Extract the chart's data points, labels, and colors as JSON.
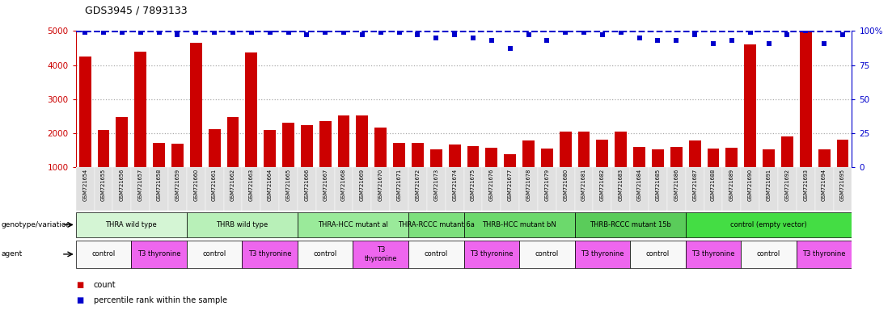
{
  "title": "GDS3945 / 7893133",
  "samples": [
    "GSM721654",
    "GSM721655",
    "GSM721656",
    "GSM721657",
    "GSM721658",
    "GSM721659",
    "GSM721660",
    "GSM721661",
    "GSM721662",
    "GSM721663",
    "GSM721664",
    "GSM721665",
    "GSM721666",
    "GSM721667",
    "GSM721668",
    "GSM721669",
    "GSM721670",
    "GSM721671",
    "GSM721672",
    "GSM721673",
    "GSM721674",
    "GSM721675",
    "GSM721676",
    "GSM721677",
    "GSM721678",
    "GSM721679",
    "GSM721680",
    "GSM721681",
    "GSM721682",
    "GSM721683",
    "GSM721684",
    "GSM721685",
    "GSM721686",
    "GSM721687",
    "GSM721688",
    "GSM721689",
    "GSM721690",
    "GSM721691",
    "GSM721692",
    "GSM721693",
    "GSM721694",
    "GSM721695"
  ],
  "bar_values": [
    4250,
    2100,
    2480,
    4400,
    1720,
    1700,
    4650,
    2120,
    2480,
    4380,
    2090,
    2320,
    2240,
    2350,
    2520,
    2530,
    2170,
    1720,
    1720,
    1520,
    1680,
    1620,
    1580,
    1380,
    1800,
    1560,
    2050,
    2060,
    1820,
    2060,
    1600,
    1520,
    1600,
    1780,
    1550,
    1580,
    4600,
    1520,
    1900,
    5000,
    1540,
    1820
  ],
  "percentile_values": [
    99,
    99,
    99,
    99,
    99,
    97,
    99,
    99,
    99,
    99,
    99,
    99,
    97,
    99,
    99,
    97,
    99,
    99,
    97,
    95,
    97,
    95,
    93,
    87,
    97,
    93,
    99,
    99,
    97,
    99,
    95,
    93,
    93,
    97,
    91,
    93,
    99,
    91,
    97,
    100,
    91,
    97
  ],
  "genotype_groups": [
    {
      "label": "THRA wild type",
      "start": 0,
      "end": 6,
      "color": "#d4f5d4"
    },
    {
      "label": "THRB wild type",
      "start": 6,
      "end": 12,
      "color": "#b8f0b8"
    },
    {
      "label": "THRA-HCC mutant al",
      "start": 12,
      "end": 18,
      "color": "#9aea9a"
    },
    {
      "label": "THRA-RCCC mutant 6a",
      "start": 18,
      "end": 21,
      "color": "#7de07d"
    },
    {
      "label": "THRB-HCC mutant bN",
      "start": 21,
      "end": 27,
      "color": "#6cd96c"
    },
    {
      "label": "THRB-RCCC mutant 15b",
      "start": 27,
      "end": 33,
      "color": "#5acc5a"
    },
    {
      "label": "control (empty vector)",
      "start": 33,
      "end": 42,
      "color": "#44dd44"
    }
  ],
  "agent_groups": [
    {
      "label": "control",
      "start": 0,
      "end": 3,
      "color": "#f8f8f8"
    },
    {
      "label": "T3 thyronine",
      "start": 3,
      "end": 6,
      "color": "#ee66ee"
    },
    {
      "label": "control",
      "start": 6,
      "end": 9,
      "color": "#f8f8f8"
    },
    {
      "label": "T3 thyronine",
      "start": 9,
      "end": 12,
      "color": "#ee66ee"
    },
    {
      "label": "control",
      "start": 12,
      "end": 15,
      "color": "#f8f8f8"
    },
    {
      "label": "T3\nthyronine",
      "start": 15,
      "end": 18,
      "color": "#ee66ee"
    },
    {
      "label": "control",
      "start": 18,
      "end": 21,
      "color": "#f8f8f8"
    },
    {
      "label": "T3 thyronine",
      "start": 21,
      "end": 24,
      "color": "#ee66ee"
    },
    {
      "label": "control",
      "start": 24,
      "end": 27,
      "color": "#f8f8f8"
    },
    {
      "label": "T3 thyronine",
      "start": 27,
      "end": 30,
      "color": "#ee66ee"
    },
    {
      "label": "control",
      "start": 30,
      "end": 33,
      "color": "#f8f8f8"
    },
    {
      "label": "T3 thyronine",
      "start": 33,
      "end": 36,
      "color": "#ee66ee"
    },
    {
      "label": "control",
      "start": 36,
      "end": 39,
      "color": "#f8f8f8"
    },
    {
      "label": "T3 thyronine",
      "start": 39,
      "end": 42,
      "color": "#ee66ee"
    }
  ],
  "ylim_left": [
    1000,
    5000
  ],
  "ylim_right": [
    0,
    100
  ],
  "yticks_left": [
    1000,
    2000,
    3000,
    4000,
    5000
  ],
  "yticks_right": [
    0,
    25,
    50,
    75,
    100
  ],
  "bar_color": "#cc0000",
  "percentile_color": "#0000cc",
  "grid_color": "#aaaaaa",
  "background_color": "#ffffff",
  "left_label_color": "#cc0000",
  "right_label_color": "#0000cc",
  "title_color": "#000000",
  "sample_bg_color": "#e0e0e0"
}
